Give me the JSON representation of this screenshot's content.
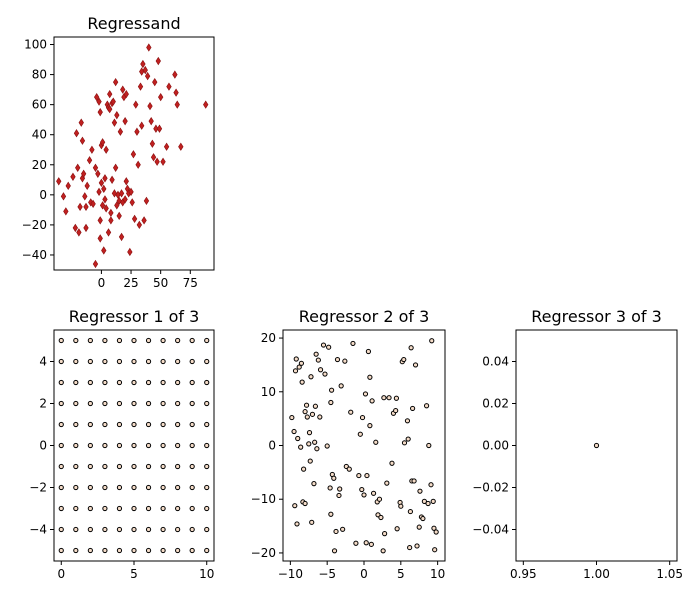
{
  "chart_data": [
    {
      "type": "scatter",
      "title": "Regressand",
      "xlim": [
        -40,
        95
      ],
      "ylim": [
        -50,
        105
      ],
      "xticks": [
        0,
        25,
        50,
        75
      ],
      "yticks": [
        -40,
        -20,
        0,
        20,
        40,
        60,
        80,
        100
      ],
      "marker": "diamond",
      "color": "#c02020",
      "points": [
        [
          -36,
          9
        ],
        [
          -32,
          -1
        ],
        [
          -30,
          -11
        ],
        [
          -28,
          6
        ],
        [
          -24,
          12
        ],
        [
          -22,
          -22
        ],
        [
          -21,
          41
        ],
        [
          -20,
          18
        ],
        [
          -19,
          -25
        ],
        [
          -18,
          -8
        ],
        [
          -17,
          48
        ],
        [
          -16,
          36
        ],
        [
          -16,
          11
        ],
        [
          -15,
          14
        ],
        [
          -14,
          -1
        ],
        [
          -13,
          -8
        ],
        [
          -13,
          -22
        ],
        [
          -12,
          6
        ],
        [
          -10,
          23
        ],
        [
          -9,
          -5
        ],
        [
          -8,
          30
        ],
        [
          -7,
          -6
        ],
        [
          -5,
          -46
        ],
        [
          -5,
          18
        ],
        [
          -4,
          65
        ],
        [
          -3,
          14
        ],
        [
          -2,
          62
        ],
        [
          -2,
          2
        ],
        [
          -1,
          -29
        ],
        [
          -1,
          55
        ],
        [
          -1,
          -17
        ],
        [
          0,
          33
        ],
        [
          0,
          8
        ],
        [
          1,
          35
        ],
        [
          1,
          -7
        ],
        [
          2,
          -37
        ],
        [
          2,
          4
        ],
        [
          3,
          11
        ],
        [
          3,
          -3
        ],
        [
          4,
          30
        ],
        [
          4,
          -9
        ],
        [
          5,
          60
        ],
        [
          6,
          -25
        ],
        [
          6,
          58
        ],
        [
          7,
          67
        ],
        [
          7,
          57
        ],
        [
          8,
          -12
        ],
        [
          8,
          -17
        ],
        [
          9,
          10
        ],
        [
          9,
          61
        ],
        [
          10,
          62
        ],
        [
          11,
          48
        ],
        [
          11,
          1
        ],
        [
          12,
          75
        ],
        [
          12,
          18
        ],
        [
          13,
          53
        ],
        [
          13,
          -7
        ],
        [
          14,
          0
        ],
        [
          15,
          -4
        ],
        [
          15,
          -14
        ],
        [
          16,
          42
        ],
        [
          17,
          -28
        ],
        [
          17,
          1
        ],
        [
          18,
          -5
        ],
        [
          18,
          70
        ],
        [
          19,
          65
        ],
        [
          20,
          49
        ],
        [
          20,
          -3
        ],
        [
          21,
          67
        ],
        [
          21,
          9
        ],
        [
          22,
          4
        ],
        [
          23,
          1
        ],
        [
          24,
          -38
        ],
        [
          25,
          2
        ],
        [
          26,
          -5
        ],
        [
          27,
          27
        ],
        [
          28,
          -16
        ],
        [
          29,
          60
        ],
        [
          30,
          42
        ],
        [
          31,
          20
        ],
        [
          32,
          -20
        ],
        [
          33,
          72
        ],
        [
          34,
          82
        ],
        [
          34,
          46
        ],
        [
          35,
          87
        ],
        [
          36,
          -17
        ],
        [
          37,
          83
        ],
        [
          38,
          -4
        ],
        [
          39,
          79
        ],
        [
          40,
          98
        ],
        [
          41,
          59
        ],
        [
          42,
          49
        ],
        [
          43,
          34
        ],
        [
          44,
          25
        ],
        [
          45,
          75
        ],
        [
          46,
          44
        ],
        [
          47,
          22
        ],
        [
          48,
          89
        ],
        [
          49,
          44
        ],
        [
          50,
          65
        ],
        [
          52,
          22
        ],
        [
          55,
          32
        ],
        [
          57,
          72
        ],
        [
          62,
          80
        ],
        [
          63,
          68
        ],
        [
          64,
          60
        ],
        [
          67,
          32
        ],
        [
          88,
          60
        ]
      ]
    },
    {
      "type": "scatter",
      "title": "Regressor 1 of 3",
      "xlim": [
        -0.5,
        10.5
      ],
      "ylim": [
        -5.5,
        5.5
      ],
      "xticks": [
        0,
        5,
        10
      ],
      "yticks": [
        -4,
        -2,
        0,
        2,
        4
      ],
      "marker": "circle",
      "color": "#000000",
      "facecolor": "#f5dcc8",
      "grid_x": [
        0,
        1,
        2,
        3,
        4,
        5,
        6,
        7,
        8,
        9,
        10
      ],
      "grid_y": [
        -5,
        -4,
        -3,
        -2,
        -1,
        0,
        1,
        2,
        3,
        4,
        5
      ]
    },
    {
      "type": "scatter",
      "title": "Regressor 2 of 3",
      "xlim": [
        -11,
        11
      ],
      "ylim": [
        -21.5,
        21.5
      ],
      "xticks": [
        -10,
        -5,
        0,
        5,
        10
      ],
      "yticks": [
        -20,
        -10,
        0,
        10,
        20
      ],
      "marker": "circle",
      "color": "#000000",
      "facecolor": "#f5dcc8",
      "points": [
        [
          -9.8,
          5.2
        ],
        [
          -9.5,
          2.6
        ],
        [
          -9.4,
          -11.2
        ],
        [
          -9.3,
          13.9
        ],
        [
          -9.2,
          16.1
        ],
        [
          -9.1,
          -14.6
        ],
        [
          -9.0,
          1.3
        ],
        [
          -8.8,
          14.6
        ],
        [
          -8.6,
          -0.3
        ],
        [
          -8.5,
          15.3
        ],
        [
          -8.4,
          11.8
        ],
        [
          -8.3,
          -10.5
        ],
        [
          -8.2,
          -4.4
        ],
        [
          -8.0,
          -10.8
        ],
        [
          -8.0,
          6.3
        ],
        [
          -7.8,
          7.5
        ],
        [
          -7.7,
          5.3
        ],
        [
          -7.5,
          0.3
        ],
        [
          -7.4,
          2.4
        ],
        [
          -7.3,
          -2.9
        ],
        [
          -7.2,
          12.8
        ],
        [
          -7.1,
          -14.3
        ],
        [
          -7.0,
          5.8
        ],
        [
          -6.8,
          -7.1
        ],
        [
          -6.7,
          0.6
        ],
        [
          -6.6,
          7.3
        ],
        [
          -6.5,
          17.0
        ],
        [
          -6.4,
          -0.6
        ],
        [
          -6.2,
          15.9
        ],
        [
          -6.0,
          5.3
        ],
        [
          -5.9,
          14.1
        ],
        [
          -5.5,
          18.7
        ],
        [
          -5.3,
          13.3
        ],
        [
          -5.0,
          -0.1
        ],
        [
          -4.8,
          18.3
        ],
        [
          -4.6,
          -7.9
        ],
        [
          -4.5,
          8.0
        ],
        [
          -4.5,
          -12.8
        ],
        [
          -4.4,
          10.3
        ],
        [
          -4.3,
          -5.4
        ],
        [
          -4.1,
          -6.1
        ],
        [
          -4.0,
          -19.6
        ],
        [
          -3.8,
          -16.0
        ],
        [
          -3.6,
          16.0
        ],
        [
          -3.4,
          -9.3
        ],
        [
          -3.3,
          -8.1
        ],
        [
          -3.1,
          11.1
        ],
        [
          -2.9,
          -15.6
        ],
        [
          -2.6,
          15.7
        ],
        [
          -2.4,
          -3.9
        ],
        [
          -2.0,
          -4.4
        ],
        [
          -1.8,
          6.2
        ],
        [
          -1.5,
          19.0
        ],
        [
          -1.1,
          -18.2
        ],
        [
          -0.7,
          -5.6
        ],
        [
          -0.5,
          2.1
        ],
        [
          -0.3,
          -8.2
        ],
        [
          -0.2,
          5.2
        ],
        [
          0.0,
          -9.2
        ],
        [
          0.2,
          9.6
        ],
        [
          0.3,
          -18.1
        ],
        [
          0.4,
          -5.6
        ],
        [
          0.6,
          17.5
        ],
        [
          0.8,
          3.7
        ],
        [
          0.8,
          12.7
        ],
        [
          1.0,
          -18.4
        ],
        [
          1.1,
          8.3
        ],
        [
          1.3,
          -8.9
        ],
        [
          1.6,
          0.6
        ],
        [
          1.8,
          -10.5
        ],
        [
          1.9,
          -12.9
        ],
        [
          2.1,
          -10.0
        ],
        [
          2.3,
          -13.4
        ],
        [
          2.6,
          -19.6
        ],
        [
          2.7,
          8.9
        ],
        [
          2.8,
          -16.4
        ],
        [
          3.1,
          -7.0
        ],
        [
          3.4,
          8.9
        ],
        [
          3.8,
          -3.3
        ],
        [
          4.0,
          6.0
        ],
        [
          4.3,
          6.5
        ],
        [
          4.4,
          8.8
        ],
        [
          4.5,
          -15.5
        ],
        [
          4.9,
          -10.6
        ],
        [
          5.0,
          -11.3
        ],
        [
          5.2,
          15.6
        ],
        [
          5.4,
          16.0
        ],
        [
          5.5,
          0.5
        ],
        [
          5.9,
          4.6
        ],
        [
          6.0,
          1.2
        ],
        [
          6.2,
          -19.0
        ],
        [
          6.3,
          -12.3
        ],
        [
          6.4,
          18.2
        ],
        [
          6.5,
          -6.6
        ],
        [
          6.6,
          6.9
        ],
        [
          6.8,
          -6.6
        ],
        [
          7.0,
          15.0
        ],
        [
          7.2,
          -18.7
        ],
        [
          7.5,
          -15.2
        ],
        [
          7.6,
          -8.5
        ],
        [
          7.8,
          -13.3
        ],
        [
          8.0,
          -13.6
        ],
        [
          8.2,
          -10.4
        ],
        [
          8.5,
          7.4
        ],
        [
          8.7,
          -10.8
        ],
        [
          8.8,
          0.0
        ],
        [
          9.1,
          -7.3
        ],
        [
          9.2,
          19.5
        ],
        [
          9.4,
          -10.4
        ],
        [
          9.5,
          -15.4
        ],
        [
          9.6,
          -19.4
        ],
        [
          9.8,
          -16.1
        ]
      ]
    },
    {
      "type": "scatter",
      "title": "Regressor 3 of 3",
      "xlim": [
        0.945,
        1.055
      ],
      "ylim": [
        -0.055,
        0.055
      ],
      "xticks": [
        0.95,
        1.0,
        1.05
      ],
      "xticklabels": [
        "0.95",
        "1.00",
        "1.05"
      ],
      "yticks": [
        -0.04,
        -0.02,
        0.0,
        0.02,
        0.04
      ],
      "yticklabels": [
        "−0.04",
        "−0.02",
        "0.00",
        "0.02",
        "0.04"
      ],
      "marker": "circle",
      "color": "#000000",
      "facecolor": "#f5dcc8",
      "points": [
        [
          1.0,
          0.0
        ]
      ]
    }
  ]
}
